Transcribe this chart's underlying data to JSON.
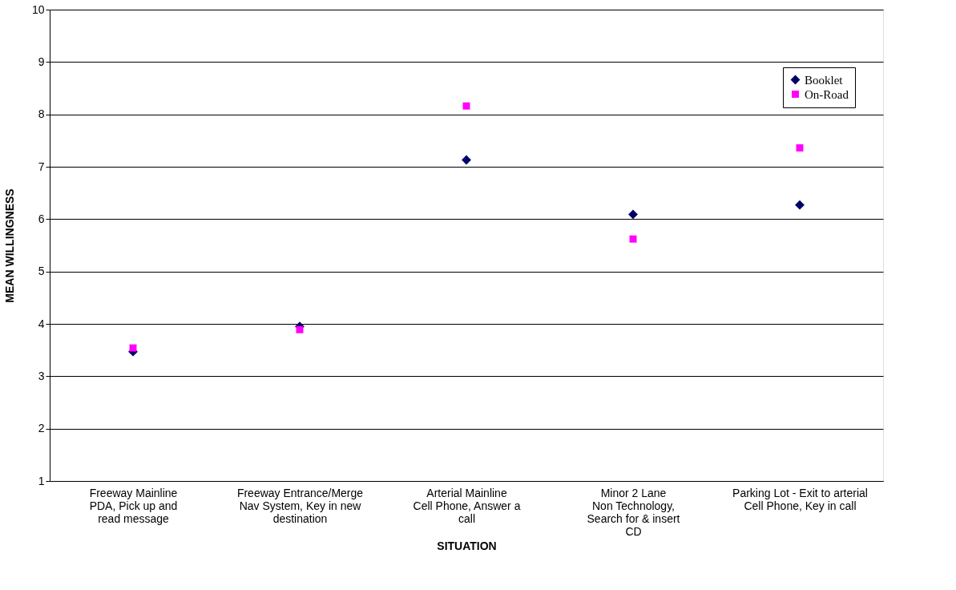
{
  "chart_data": {
    "type": "scatter",
    "xlabel": "SITUATION",
    "ylabel": "MEAN WILLINGNESS",
    "categories": [
      "Freeway Mainline\nPDA, Pick up and\nread message",
      "Freeway Entrance/Merge\nNav System, Key in new\ndestination",
      "Arterial Mainline\nCell Phone, Answer a\ncall",
      "Minor 2 Lane\nNon Technology,\nSearch for & insert\nCD",
      "Parking Lot - Exit to arterial\nCell Phone, Key in call"
    ],
    "series": [
      {
        "name": "Booklet",
        "color": "#000066",
        "marker": "diamond",
        "values": [
          3.47,
          3.95,
          7.13,
          6.09,
          6.27
        ]
      },
      {
        "name": "On-Road",
        "color": "#ff00ff",
        "marker": "square",
        "values": [
          3.54,
          3.89,
          8.16,
          5.62,
          7.36
        ]
      }
    ],
    "ylim": [
      1,
      10
    ],
    "yticks": [
      1,
      2,
      3,
      4,
      5,
      6,
      7,
      8,
      9,
      10
    ],
    "grid": "y",
    "legend": "top right"
  }
}
